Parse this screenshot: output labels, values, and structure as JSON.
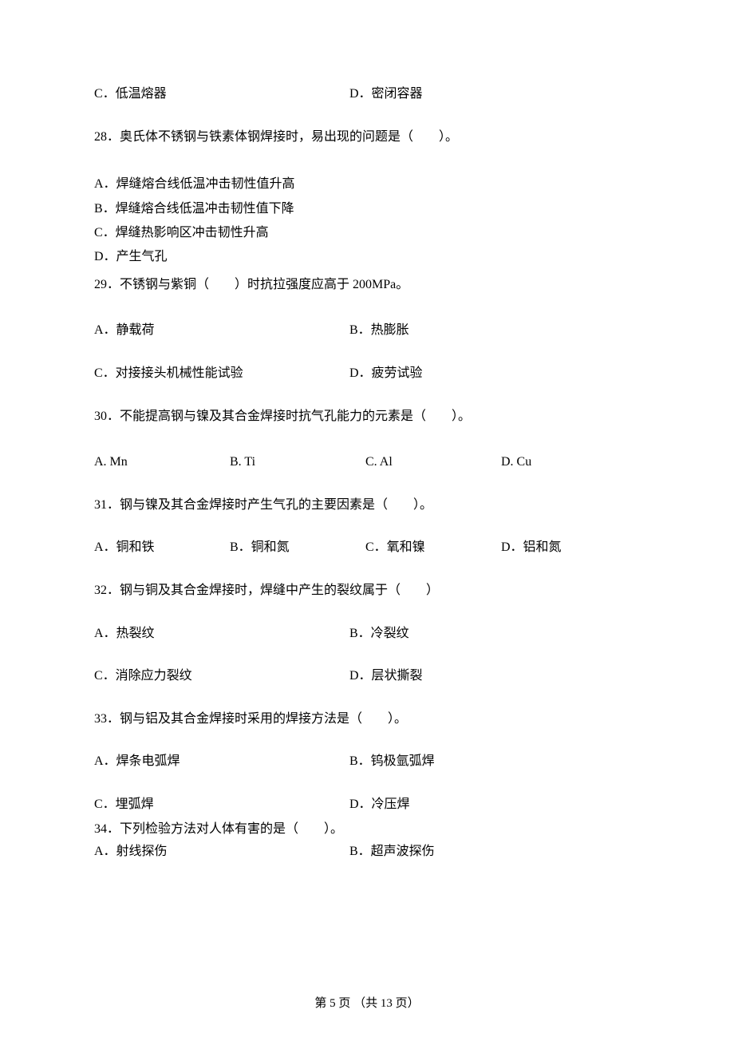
{
  "q27": {
    "optC": "C．低温熔器",
    "optD": "D．密闭容器"
  },
  "q28": {
    "stem": "28．奥氏体不锈钢与铁素体钢焊接时，易出现的问题是（　　）。",
    "optA": "A．焊缝熔合线低温冲击韧性值升高",
    "optB": "B．焊缝熔合线低温冲击韧性值下降",
    "optC": "C．焊缝热影响区冲击韧性升高",
    "optD": "D．产生气孔"
  },
  "q29": {
    "stem": "29．不锈钢与紫铜（　　）时抗拉强度应高于 200MPa。",
    "optA": "A．静载荷",
    "optB": "B．热膨胀",
    "optC": "C．对接接头机械性能试验",
    "optD": "D．疲劳试验"
  },
  "q30": {
    "stem": "30．不能提高钢与镍及其合金焊接时抗气孔能力的元素是（　　）。",
    "optA": "A. Mn",
    "optB": "B. Ti",
    "optC": "C. Al",
    "optD": "D. Cu"
  },
  "q31": {
    "stem": "31．钢与镍及其合金焊接时产生气孔的主要因素是（　　）。",
    "optA": "A．铜和铁",
    "optB": "B．铜和氮",
    "optC": "C．氧和镍",
    "optD": "D．铝和氮"
  },
  "q32": {
    "stem": "32．钢与铜及其合金焊接时，焊缝中产生的裂纹属于（　　）",
    "optA": "A．热裂纹",
    "optB": "B．冷裂纹",
    "optC": "C．消除应力裂纹",
    "optD": "D．层状撕裂"
  },
  "q33": {
    "stem": "33．钢与铝及其合金焊接时采用的焊接方法是（　　）。",
    "optA": "A．焊条电弧焊",
    "optB": "B．钨极氩弧焊",
    "optC": "C．埋弧焊",
    "optD": "D．冷压焊"
  },
  "q34": {
    "stem": "34．下列检验方法对人体有害的是（　　）。",
    "optA": "A．射线探伤",
    "optB": "B．超声波探伤"
  },
  "footer": "第  5  页  （共  13  页）"
}
